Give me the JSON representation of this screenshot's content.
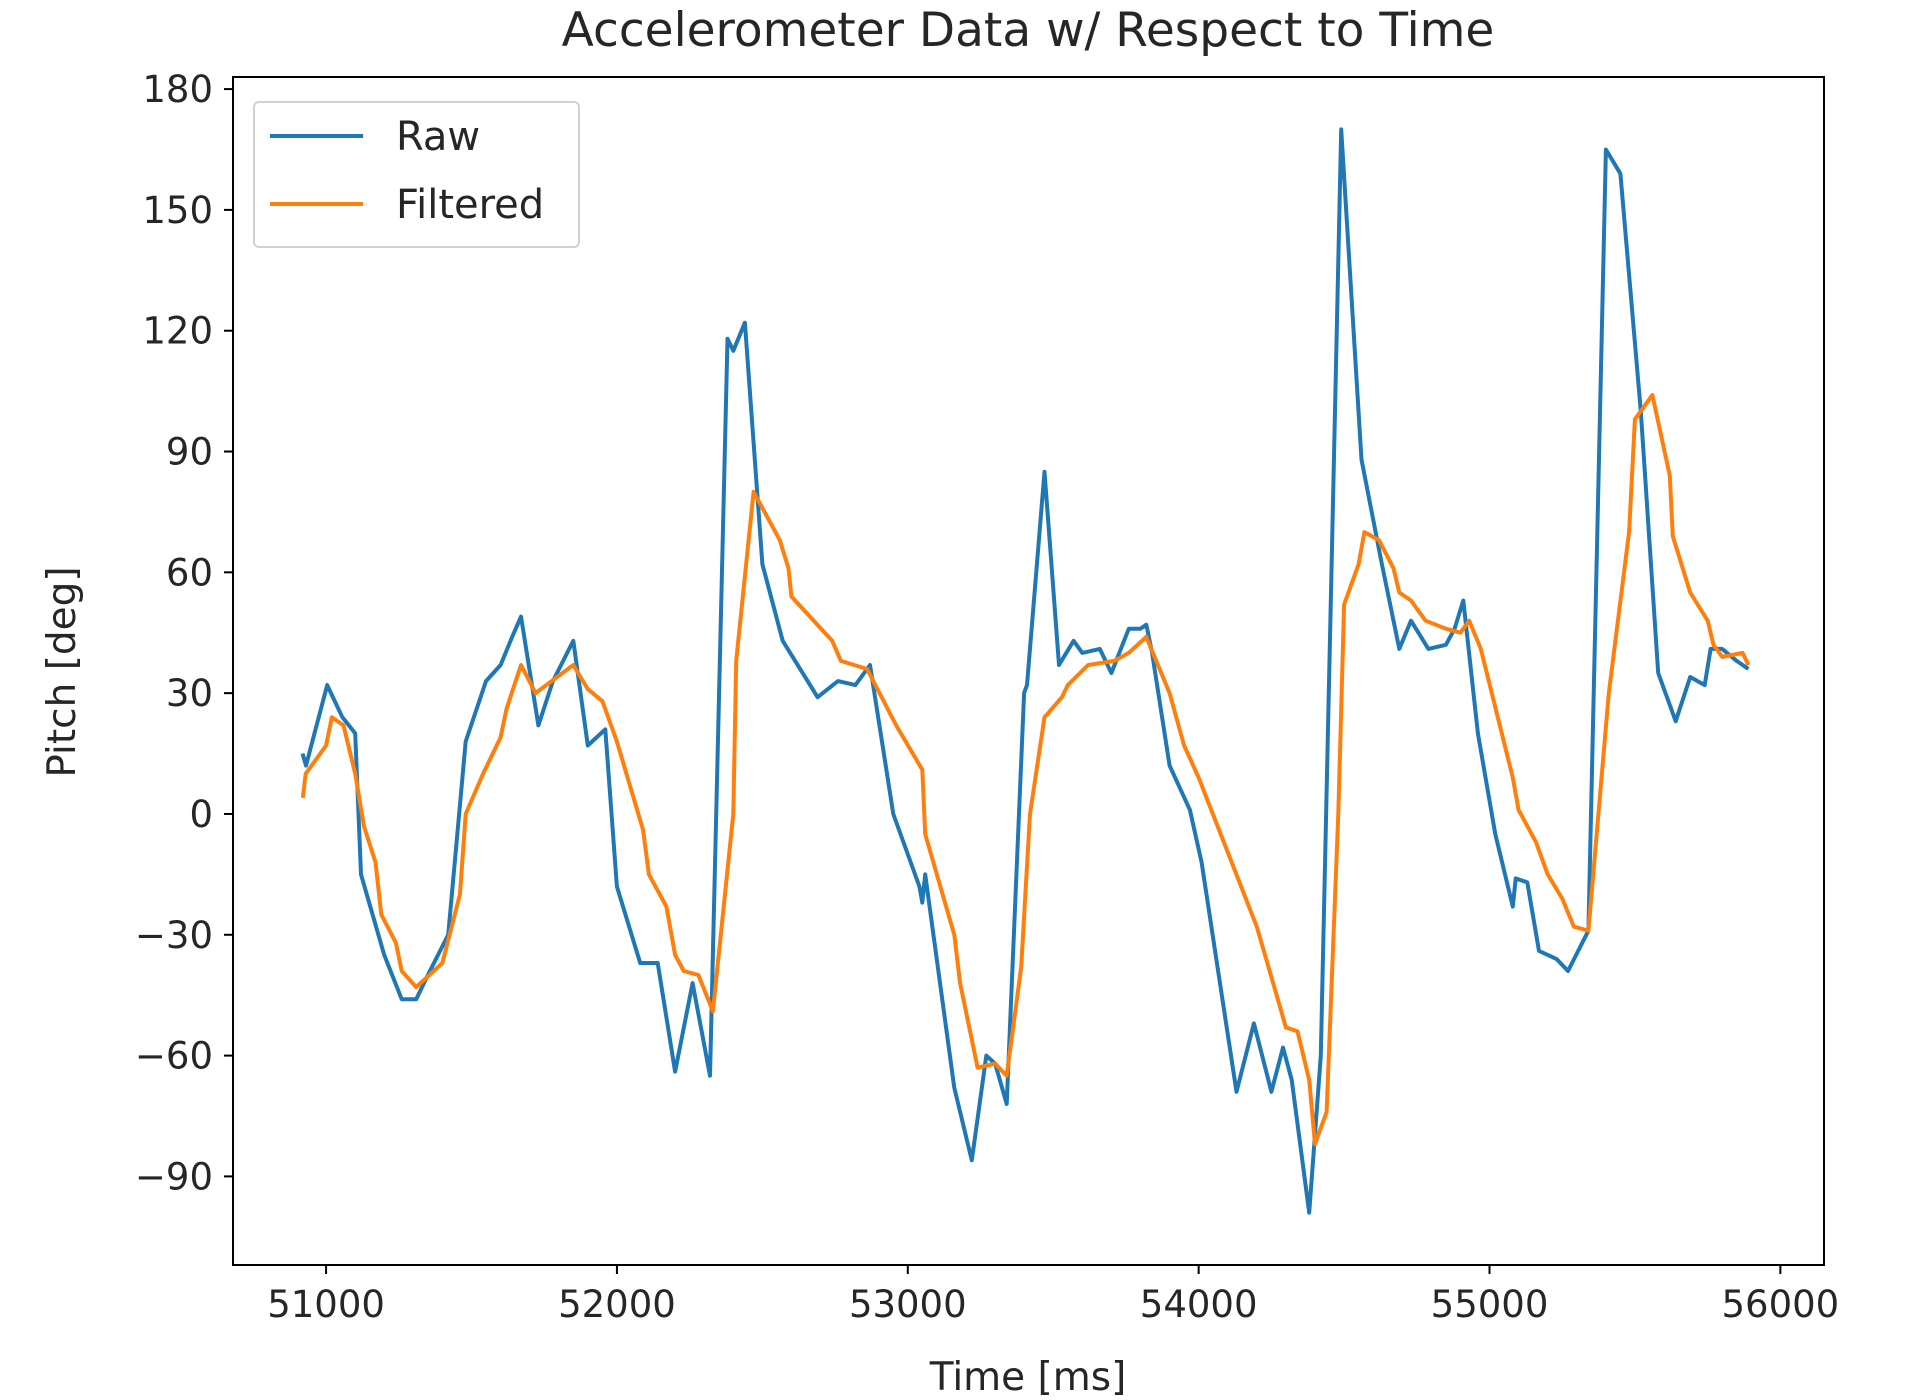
{
  "chart_data": {
    "type": "line",
    "title": "Accelerometer Data w/ Respect to Time",
    "xlabel": "Time [ms]",
    "ylabel": "Pitch [deg]",
    "xlim": [
      50680,
      56150
    ],
    "ylim": [
      -112,
      183
    ],
    "xticks": [
      51000,
      52000,
      53000,
      54000,
      55000,
      56000
    ],
    "yticks": [
      -90,
      -60,
      -30,
      0,
      30,
      60,
      90,
      120,
      150,
      180
    ],
    "xtick_labels": [
      "51000",
      "52000",
      "53000",
      "54000",
      "55000",
      "56000"
    ],
    "ytick_labels": [
      "−90",
      "−60",
      "−30",
      "0",
      "30",
      "60",
      "90",
      "120",
      "150",
      "180"
    ],
    "grid": false,
    "legend_position": "top-left",
    "series": [
      {
        "name": "Raw",
        "color": "#1f77b4",
        "points": [
          [
            50919,
            15
          ],
          [
            50931,
            12
          ],
          [
            51004,
            32
          ],
          [
            51056,
            24
          ],
          [
            51100,
            20
          ],
          [
            51120,
            -15
          ],
          [
            51200,
            -35
          ],
          [
            51260,
            -46
          ],
          [
            51310,
            -46
          ],
          [
            51350,
            -40
          ],
          [
            51420,
            -30
          ],
          [
            51480,
            18
          ],
          [
            51550,
            33
          ],
          [
            51600,
            37
          ],
          [
            51640,
            44
          ],
          [
            51670,
            49
          ],
          [
            51730,
            22
          ],
          [
            51780,
            33
          ],
          [
            51850,
            43
          ],
          [
            51900,
            17
          ],
          [
            51960,
            21
          ],
          [
            52000,
            -18
          ],
          [
            52080,
            -37
          ],
          [
            52140,
            -37
          ],
          [
            52200,
            -64
          ],
          [
            52260,
            -42
          ],
          [
            52320,
            -65
          ],
          [
            52380,
            118
          ],
          [
            52400,
            115
          ],
          [
            52440,
            122
          ],
          [
            52500,
            62
          ],
          [
            52570,
            43
          ],
          [
            52690,
            29
          ],
          [
            52760,
            33
          ],
          [
            52820,
            32
          ],
          [
            52870,
            37
          ],
          [
            52950,
            0
          ],
          [
            53040,
            -18
          ],
          [
            53050,
            -22
          ],
          [
            53060,
            -15
          ],
          [
            53160,
            -68
          ],
          [
            53220,
            -86
          ],
          [
            53270,
            -60
          ],
          [
            53300,
            -62
          ],
          [
            53340,
            -72
          ],
          [
            53400,
            30
          ],
          [
            53410,
            32
          ],
          [
            53470,
            85
          ],
          [
            53520,
            37
          ],
          [
            53570,
            43
          ],
          [
            53600,
            40
          ],
          [
            53660,
            41
          ],
          [
            53700,
            35
          ],
          [
            53760,
            46
          ],
          [
            53800,
            46
          ],
          [
            53820,
            47
          ],
          [
            53840,
            40
          ],
          [
            53900,
            12
          ],
          [
            53970,
            1
          ],
          [
            54010,
            -12
          ],
          [
            54130,
            -69
          ],
          [
            54190,
            -52
          ],
          [
            54250,
            -69
          ],
          [
            54290,
            -58
          ],
          [
            54320,
            -66
          ],
          [
            54380,
            -99
          ],
          [
            54420,
            -60
          ],
          [
            54490,
            170
          ],
          [
            54560,
            88
          ],
          [
            54630,
            62
          ],
          [
            54690,
            41
          ],
          [
            54730,
            48
          ],
          [
            54790,
            41
          ],
          [
            54850,
            42
          ],
          [
            54880,
            46
          ],
          [
            54910,
            53
          ],
          [
            54960,
            20
          ],
          [
            55020,
            -5
          ],
          [
            55080,
            -23
          ],
          [
            55090,
            -16
          ],
          [
            55130,
            -17
          ],
          [
            55170,
            -34
          ],
          [
            55230,
            -36
          ],
          [
            55270,
            -39
          ],
          [
            55340,
            -29
          ],
          [
            55400,
            165
          ],
          [
            55450,
            159
          ],
          [
            55520,
            100
          ],
          [
            55580,
            35
          ],
          [
            55640,
            23
          ],
          [
            55690,
            34
          ],
          [
            55740,
            32
          ],
          [
            55760,
            41
          ],
          [
            55800,
            41
          ],
          [
            55850,
            38
          ],
          [
            55890,
            36
          ]
        ]
      },
      {
        "name": "Filtered",
        "color": "#ff7f0e",
        "points": [
          [
            50920,
            4
          ],
          [
            50930,
            10
          ],
          [
            51000,
            17
          ],
          [
            51020,
            24
          ],
          [
            51060,
            22
          ],
          [
            51100,
            10
          ],
          [
            51130,
            -3
          ],
          [
            51170,
            -12
          ],
          [
            51190,
            -25
          ],
          [
            51240,
            -32
          ],
          [
            51260,
            -39
          ],
          [
            51310,
            -43
          ],
          [
            51400,
            -37
          ],
          [
            51460,
            -20
          ],
          [
            51480,
            0
          ],
          [
            51540,
            10
          ],
          [
            51600,
            19
          ],
          [
            51620,
            26
          ],
          [
            51670,
            37
          ],
          [
            51720,
            30
          ],
          [
            51850,
            37
          ],
          [
            51900,
            31
          ],
          [
            51950,
            28
          ],
          [
            52000,
            18
          ],
          [
            52090,
            -4
          ],
          [
            52110,
            -15
          ],
          [
            52170,
            -23
          ],
          [
            52200,
            -35
          ],
          [
            52230,
            -39
          ],
          [
            52280,
            -40
          ],
          [
            52330,
            -49
          ],
          [
            52400,
            0
          ],
          [
            52410,
            38
          ],
          [
            52470,
            80
          ],
          [
            52560,
            68
          ],
          [
            52590,
            61
          ],
          [
            52600,
            54
          ],
          [
            52740,
            43
          ],
          [
            52770,
            38
          ],
          [
            52860,
            36
          ],
          [
            52960,
            22
          ],
          [
            53050,
            11
          ],
          [
            53060,
            -5
          ],
          [
            53160,
            -30
          ],
          [
            53180,
            -42
          ],
          [
            53240,
            -63
          ],
          [
            53300,
            -62
          ],
          [
            53340,
            -65
          ],
          [
            53390,
            -38
          ],
          [
            53420,
            0
          ],
          [
            53470,
            24
          ],
          [
            53530,
            29
          ],
          [
            53550,
            32
          ],
          [
            53620,
            37
          ],
          [
            53710,
            38
          ],
          [
            53760,
            40
          ],
          [
            53820,
            44
          ],
          [
            53900,
            30
          ],
          [
            53950,
            17
          ],
          [
            54000,
            9
          ],
          [
            54200,
            -28
          ],
          [
            54240,
            -38
          ],
          [
            54300,
            -53
          ],
          [
            54340,
            -54
          ],
          [
            54380,
            -66
          ],
          [
            54400,
            -82
          ],
          [
            54440,
            -74
          ],
          [
            54480,
            0
          ],
          [
            54500,
            52
          ],
          [
            54550,
            62
          ],
          [
            54570,
            70
          ],
          [
            54620,
            68
          ],
          [
            54670,
            61
          ],
          [
            54690,
            55
          ],
          [
            54730,
            53
          ],
          [
            54780,
            48
          ],
          [
            54850,
            46
          ],
          [
            54900,
            45
          ],
          [
            54930,
            48
          ],
          [
            54970,
            41
          ],
          [
            55080,
            9
          ],
          [
            55100,
            1
          ],
          [
            55160,
            -7
          ],
          [
            55200,
            -15
          ],
          [
            55250,
            -21
          ],
          [
            55290,
            -28
          ],
          [
            55340,
            -29
          ],
          [
            55410,
            30
          ],
          [
            55480,
            70
          ],
          [
            55500,
            98
          ],
          [
            55560,
            104
          ],
          [
            55620,
            84
          ],
          [
            55630,
            69
          ],
          [
            55690,
            55
          ],
          [
            55750,
            48
          ],
          [
            55770,
            42
          ],
          [
            55800,
            39
          ],
          [
            55870,
            40
          ],
          [
            55890,
            37
          ]
        ]
      }
    ]
  }
}
